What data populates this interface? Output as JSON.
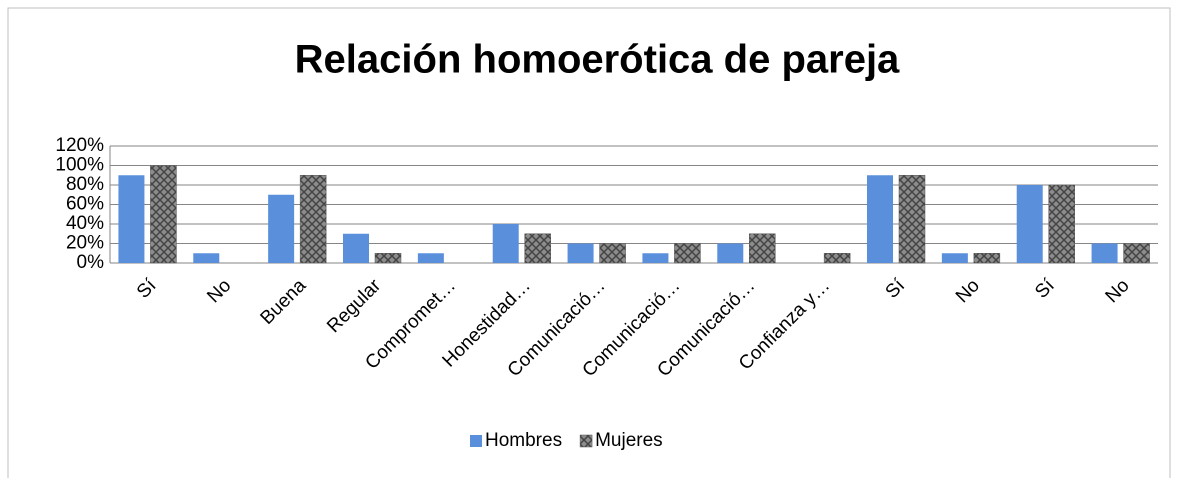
{
  "chart_data": {
    "type": "bar",
    "title": "Relación homoerótica de pareja",
    "categories": [
      "Sí",
      "No",
      "Buena",
      "Regular",
      "Compromet…",
      "Honestidad…",
      "Comunicació…",
      "Comunicació…",
      "Comunicació…",
      "Confianza y…",
      "Sí",
      "No",
      "Sí",
      "No"
    ],
    "series": [
      {
        "name": "Hombres",
        "color": "#5a8fdc",
        "values": [
          90,
          10,
          70,
          30,
          10,
          40,
          20,
          10,
          20,
          0,
          90,
          10,
          80,
          20
        ]
      },
      {
        "name": "Mujeres",
        "color": "#8c8c8c",
        "values": [
          100,
          0,
          90,
          10,
          0,
          30,
          20,
          20,
          30,
          10,
          90,
          10,
          80,
          20
        ]
      }
    ],
    "ylim": [
      0,
      120
    ],
    "yticks": [
      {
        "value": 0,
        "label": "0%"
      },
      {
        "value": 20,
        "label": "20%"
      },
      {
        "value": 40,
        "label": "40%"
      },
      {
        "value": 60,
        "label": "60%"
      },
      {
        "value": 80,
        "label": "80%"
      },
      {
        "value": 100,
        "label": "100%"
      },
      {
        "value": 120,
        "label": "120%"
      }
    ],
    "grid": true,
    "legend": "bottom"
  }
}
